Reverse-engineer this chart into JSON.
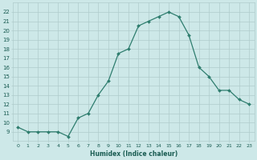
{
  "x": [
    0,
    1,
    2,
    3,
    4,
    5,
    6,
    7,
    8,
    9,
    10,
    11,
    12,
    13,
    14,
    15,
    16,
    17,
    18,
    19,
    20,
    21,
    22,
    23
  ],
  "y": [
    9.5,
    9.0,
    9.0,
    9.0,
    9.0,
    8.5,
    10.5,
    11.0,
    13.0,
    14.5,
    17.5,
    18.0,
    20.5,
    21.0,
    21.5,
    22.0,
    21.5,
    19.5,
    16.0,
    15.0,
    13.5,
    13.5,
    12.5,
    12.0
  ],
  "xlim": [
    -0.5,
    23.5
  ],
  "ylim": [
    8.0,
    23.0
  ],
  "xticks": [
    0,
    1,
    2,
    3,
    4,
    5,
    6,
    7,
    8,
    9,
    10,
    11,
    12,
    13,
    14,
    15,
    16,
    17,
    18,
    19,
    20,
    21,
    22,
    23
  ],
  "yticks": [
    9,
    10,
    11,
    12,
    13,
    14,
    15,
    16,
    17,
    18,
    19,
    20,
    21,
    22
  ],
  "xlabel": "Humidex (Indice chaleur)",
  "line_color": "#2e7d6e",
  "marker": "D",
  "marker_size": 2.0,
  "bg_color": "#cde8e8",
  "grid_color": "#b0cccc",
  "label_color": "#1a5c52",
  "figsize": [
    3.2,
    2.0
  ],
  "dpi": 100
}
